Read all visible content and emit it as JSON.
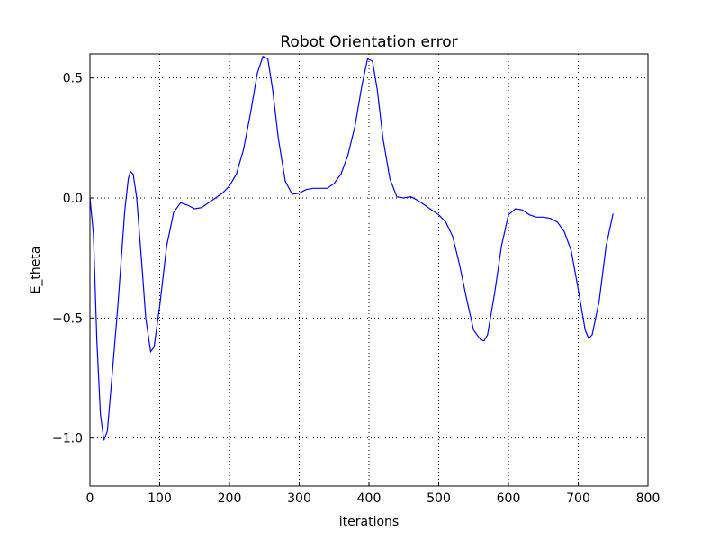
{
  "chart_data": {
    "type": "line",
    "title": "Robot Orientation error",
    "xlabel": "iterations",
    "ylabel": "E_theta",
    "x": [
      0,
      5,
      10,
      15,
      20,
      25,
      30,
      40,
      50,
      55,
      58,
      62,
      67,
      75,
      80,
      87,
      92,
      100,
      110,
      120,
      130,
      140,
      150,
      160,
      170,
      180,
      190,
      200,
      210,
      220,
      230,
      240,
      248,
      255,
      262,
      270,
      280,
      290,
      300,
      310,
      320,
      340,
      350,
      360,
      370,
      380,
      390,
      398,
      405,
      412,
      420,
      430,
      440,
      450,
      460,
      470,
      480,
      490,
      500,
      510,
      520,
      530,
      540,
      550,
      560,
      565,
      570,
      580,
      590,
      600,
      610,
      620,
      630,
      640,
      650,
      660,
      670,
      680,
      690,
      700,
      710,
      715,
      720,
      730,
      740,
      750
    ],
    "series": [
      {
        "name": "E_theta",
        "color": "#0000ff",
        "values": [
          0.0,
          -0.15,
          -0.6,
          -0.9,
          -1.01,
          -0.97,
          -0.8,
          -0.45,
          -0.05,
          0.08,
          0.11,
          0.1,
          0.0,
          -0.3,
          -0.5,
          -0.64,
          -0.62,
          -0.45,
          -0.2,
          -0.06,
          -0.02,
          -0.03,
          -0.045,
          -0.04,
          -0.02,
          0.0,
          0.02,
          0.05,
          0.1,
          0.2,
          0.35,
          0.52,
          0.59,
          0.58,
          0.45,
          0.25,
          0.07,
          0.015,
          0.02,
          0.035,
          0.04,
          0.04,
          0.06,
          0.1,
          0.18,
          0.3,
          0.47,
          0.58,
          0.57,
          0.45,
          0.25,
          0.08,
          0.005,
          0.0,
          0.005,
          -0.01,
          -0.03,
          -0.05,
          -0.07,
          -0.1,
          -0.16,
          -0.28,
          -0.42,
          -0.55,
          -0.59,
          -0.595,
          -0.57,
          -0.4,
          -0.2,
          -0.07,
          -0.045,
          -0.05,
          -0.07,
          -0.08,
          -0.08,
          -0.085,
          -0.1,
          -0.14,
          -0.22,
          -0.38,
          -0.55,
          -0.585,
          -0.57,
          -0.43,
          -0.2,
          -0.065
        ]
      }
    ],
    "xlim": [
      0,
      800
    ],
    "xticks": [
      0,
      100,
      200,
      300,
      400,
      500,
      600,
      700,
      800
    ],
    "ylim": [
      -1.2,
      0.6
    ],
    "yticks": [
      {
        "value": -1.0,
        "label": "−1.0"
      },
      {
        "value": -0.5,
        "label": "−0.5"
      },
      {
        "value": 0.0,
        "label": "0.0"
      },
      {
        "value": 0.5,
        "label": "0.5"
      }
    ],
    "grid": true
  }
}
